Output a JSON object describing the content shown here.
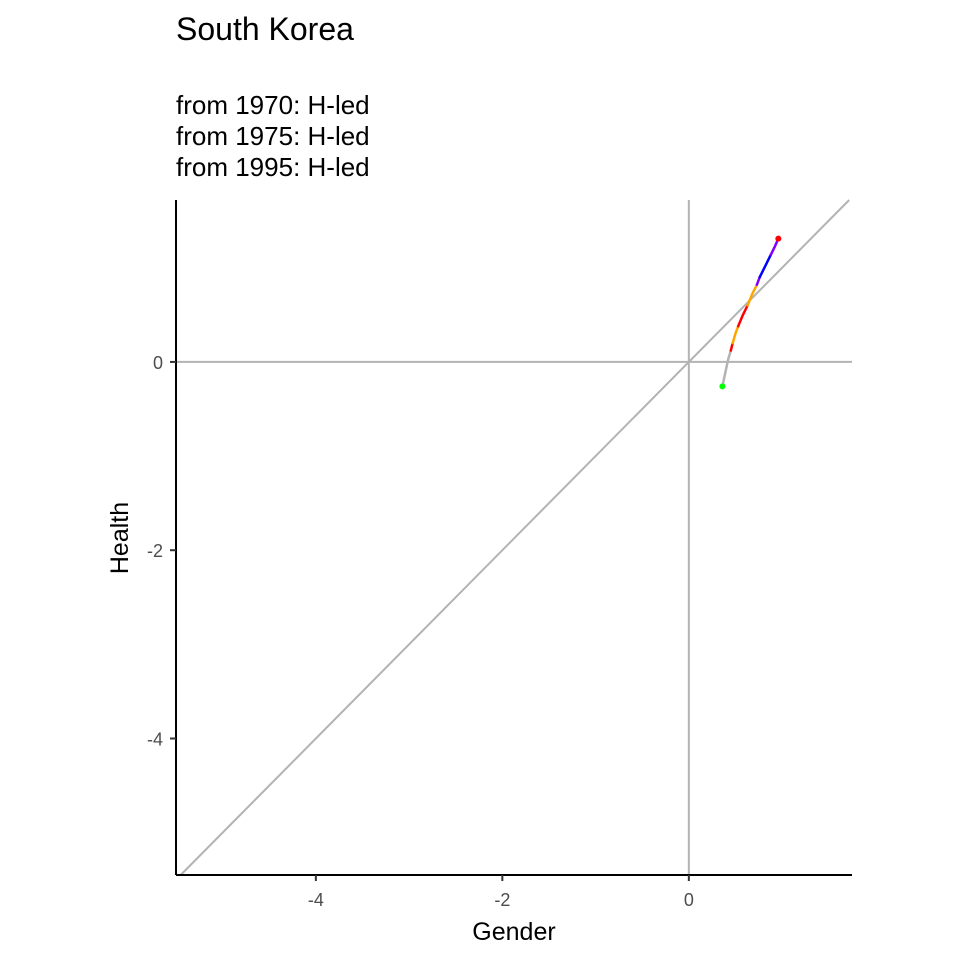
{
  "chart_data": {
    "type": "line",
    "title": "South Korea",
    "subtitle_lines": [
      "from 1970:  H-led",
      "from 1975:  H-led",
      "from 1995:  H-led"
    ],
    "xlabel": "Gender",
    "ylabel": "Health",
    "xlim": [
      -5.5,
      1.75
    ],
    "ylim": [
      -5.45,
      1.72
    ],
    "x_ticks": [
      -4,
      -2,
      0
    ],
    "y_ticks": [
      0,
      -2,
      -4
    ],
    "reference_lines": {
      "horizontal_zero": true,
      "vertical_zero": true,
      "diagonal_identity": true,
      "color": "#b3b3b3"
    },
    "grid": false,
    "trajectory": {
      "segments": [
        {
          "color": "#b3b3b3",
          "points": [
            [
              0.36,
              -0.26
            ],
            [
              0.42,
              0.02
            ],
            [
              0.45,
              0.12
            ]
          ]
        },
        {
          "color": "#ff0000",
          "points": [
            [
              0.45,
              0.12
            ],
            [
              0.47,
              0.2
            ]
          ]
        },
        {
          "color": "#ffa500",
          "points": [
            [
              0.47,
              0.2
            ],
            [
              0.5,
              0.3
            ],
            [
              0.53,
              0.38
            ]
          ]
        },
        {
          "color": "#ff0000",
          "points": [
            [
              0.53,
              0.38
            ],
            [
              0.58,
              0.5
            ],
            [
              0.63,
              0.6
            ]
          ]
        },
        {
          "color": "#ffa500",
          "points": [
            [
              0.63,
              0.6
            ],
            [
              0.68,
              0.72
            ],
            [
              0.73,
              0.82
            ]
          ]
        },
        {
          "color": "#8000ff",
          "points": [
            [
              0.73,
              0.82
            ],
            [
              0.76,
              0.9
            ]
          ]
        },
        {
          "color": "#0000ff",
          "points": [
            [
              0.76,
              0.9
            ],
            [
              0.82,
              1.02
            ],
            [
              0.88,
              1.14
            ]
          ]
        },
        {
          "color": "#8000ff",
          "points": [
            [
              0.88,
              1.14
            ],
            [
              0.92,
              1.22
            ],
            [
              0.96,
              1.31
            ]
          ]
        }
      ],
      "start_point": {
        "x": 0.36,
        "y": -0.26,
        "color": "#00ff00"
      },
      "end_point": {
        "x": 0.96,
        "y": 1.31,
        "color": "#ff0000"
      }
    }
  }
}
